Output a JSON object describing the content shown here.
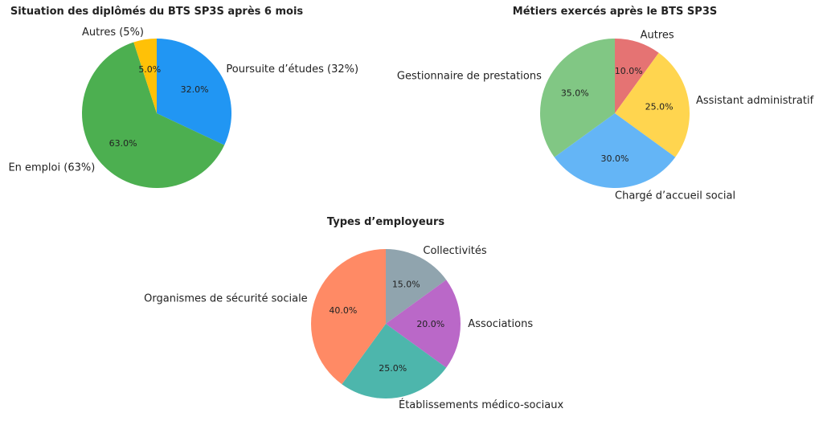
{
  "chart_data": [
    {
      "type": "pie",
      "title": "Situation des diplômés du BTS SP3S après 6 mois",
      "start_angle_deg": 90,
      "direction": "clockwise",
      "slices": [
        {
          "label": "Poursuite d’études (32%)",
          "value": 32,
          "pct_label": "32.0%",
          "color": "#2196F3"
        },
        {
          "label": "En emploi (63%)",
          "value": 63,
          "pct_label": "63.0%",
          "color": "#4CAF50"
        },
        {
          "label": "Autres (5%)",
          "value": 5,
          "pct_label": "5.0%",
          "color": "#FFC107"
        }
      ]
    },
    {
      "type": "pie",
      "title": "Métiers exercés après le BTS SP3S",
      "start_angle_deg": 90,
      "direction": "clockwise",
      "slices": [
        {
          "label": "Autres",
          "value": 10,
          "pct_label": "10.0%",
          "color": "#E57373"
        },
        {
          "label": "Assistant administratif",
          "value": 25,
          "pct_label": "25.0%",
          "color": "#FFD54F"
        },
        {
          "label": "Chargé d’accueil social",
          "value": 30,
          "pct_label": "30.0%",
          "color": "#64B5F6"
        },
        {
          "label": "Gestionnaire de prestations",
          "value": 35,
          "pct_label": "35.0%",
          "color": "#81C784"
        }
      ]
    },
    {
      "type": "pie",
      "title": "Types d’employeurs",
      "start_angle_deg": 90,
      "direction": "clockwise",
      "slices": [
        {
          "label": "Collectivités",
          "value": 15,
          "pct_label": "15.0%",
          "color": "#90A4AE"
        },
        {
          "label": "Associations",
          "value": 20,
          "pct_label": "20.0%",
          "color": "#BA68C8"
        },
        {
          "label": "Établissements médico-sociaux",
          "value": 25,
          "pct_label": "25.0%",
          "color": "#4DB6AC"
        },
        {
          "label": "Organismes de sécurité sociale",
          "value": 40,
          "pct_label": "40.0%",
          "color": "#FF8A65"
        }
      ]
    }
  ]
}
